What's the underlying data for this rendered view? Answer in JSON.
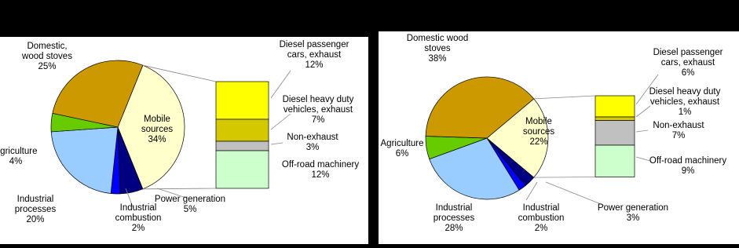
{
  "chart_data": [
    {
      "type": "pie",
      "labels": [
        [
          "Mobile",
          "sources"
        ],
        [
          "Power generation"
        ],
        [
          "Industrial",
          "combustion"
        ],
        [
          "Industrial",
          "processes"
        ],
        [
          "Agriculture"
        ],
        [
          "Domestic,",
          "wood stoves"
        ]
      ],
      "values": [
        34,
        5,
        2,
        20,
        4,
        25
      ],
      "value_labels": [
        "34%",
        "5%",
        "2%",
        "20%",
        "4%",
        "25%"
      ],
      "colors": [
        "#ffffcc",
        "#000080",
        "#0000ff",
        "#99ccff",
        "#66cc00",
        "#cc9900"
      ],
      "breakdown": {
        "labels": [
          [
            "Diesel passenger",
            "cars, exhaust"
          ],
          [
            "Diesel heavy duty",
            "vehicles, exhaust"
          ],
          [
            "Non-exhaust"
          ],
          [
            "Off-road machinery"
          ]
        ],
        "values": [
          12,
          7,
          3,
          12
        ],
        "value_labels": [
          "12%",
          "7%",
          "3%",
          "12%"
        ],
        "colors": [
          "#ffff00",
          "#d4c800",
          "#c0c0c0",
          "#ccffcc"
        ]
      }
    },
    {
      "type": "pie",
      "labels": [
        [
          "Mobile",
          "sources"
        ],
        [
          "Power generation"
        ],
        [
          "Industrial",
          "combustion"
        ],
        [
          "Industrial",
          "processes"
        ],
        [
          "Agriculture"
        ],
        [
          "Domestic wood",
          "stoves"
        ]
      ],
      "values": [
        22,
        3,
        2,
        28,
        6,
        38
      ],
      "value_labels": [
        "22%",
        "3%",
        "2%",
        "28%",
        "6%",
        "38%"
      ],
      "colors": [
        "#ffffcc",
        "#000080",
        "#0000ff",
        "#99ccff",
        "#66cc00",
        "#cc9900"
      ],
      "breakdown": {
        "labels": [
          [
            "Diesel passenger",
            "cars, exhaust"
          ],
          [
            "Diesel heavy duty",
            "vehicles, exhaust"
          ],
          [
            "Non-exhaust"
          ],
          [
            "Off-road machinery"
          ]
        ],
        "values": [
          6,
          1,
          7,
          9
        ],
        "value_labels": [
          "6%",
          "1%",
          "7%",
          "9%"
        ],
        "colors": [
          "#ffff00",
          "#d4c800",
          "#c0c0c0",
          "#ccffcc"
        ]
      }
    }
  ]
}
